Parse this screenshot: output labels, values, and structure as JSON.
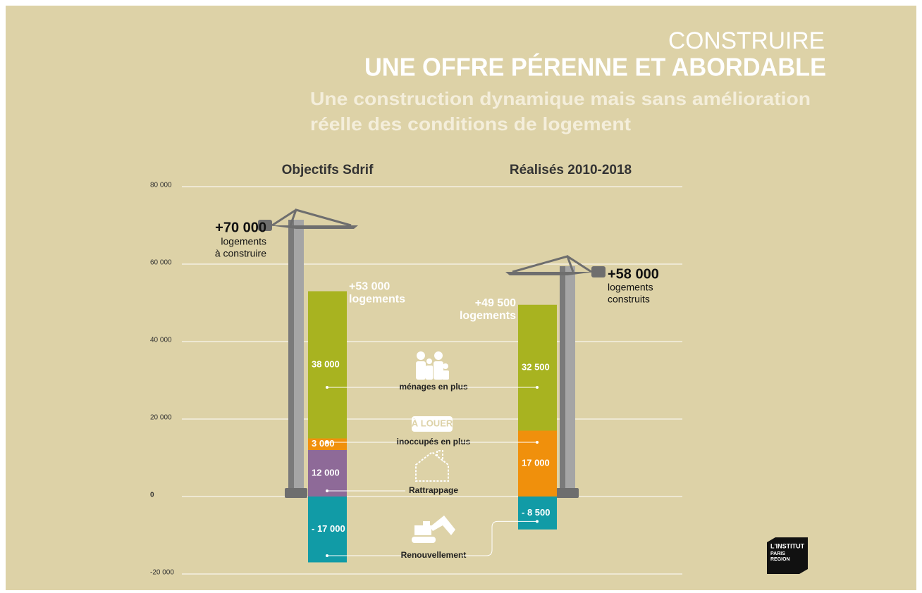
{
  "chart_data": {
    "type": "bar",
    "stacked": true,
    "header": "CONSTRUIRE",
    "title": "UNE OFFRE PÉRENNE ET ABORDABLE",
    "subtitle": [
      "Une construction dynamique mais sans amélioration",
      "réelle des conditions de logement"
    ],
    "categories": [
      "Objectifs Sdrif",
      "Réalisés 2010-2018"
    ],
    "ylim": [
      -20000,
      80000
    ],
    "yticks": [
      {
        "value": 80000,
        "label": "80 000"
      },
      {
        "value": 60000,
        "label": "60 000"
      },
      {
        "value": 40000,
        "label": "40 000"
      },
      {
        "value": 20000,
        "label": "20 000"
      },
      0,
      {
        "value": -20000,
        "label": "-20 000"
      }
    ],
    "grid": true,
    "series": [
      {
        "name": "Rattrappage",
        "color": "#8e6a98",
        "values": [
          12000,
          null
        ],
        "value_labels": [
          "12 000",
          null
        ]
      },
      {
        "name": "inoccupés en plus",
        "color": "#f0900c",
        "values": [
          3000,
          17000
        ],
        "value_labels": [
          "3 000",
          "17 000"
        ]
      },
      {
        "name": "ménages en plus",
        "color": "#a8b320",
        "values": [
          38000,
          32500
        ],
        "value_labels": [
          "38 000",
          "32 500"
        ]
      },
      {
        "name": "Renouvellement",
        "color": "#119ba6",
        "values": [
          -17000,
          -8500
        ],
        "value_labels": [
          "- 17 000",
          "- 8 500"
        ]
      }
    ],
    "sign_label": "À LOUER",
    "totals": {
      "values": [
        53000,
        49500
      ],
      "value_labels": [
        "+53 000",
        "+49 500"
      ],
      "unit": [
        "logements",
        "logements"
      ]
    },
    "cranes": {
      "values": [
        70000,
        58000
      ],
      "value_labels": [
        "+70 000",
        "+58 000"
      ],
      "notes": [
        [
          "logements",
          "à construire"
        ],
        [
          "logements",
          "construits"
        ]
      ]
    },
    "logo": [
      "L'INSTITUT",
      "PARIS",
      "REGION"
    ]
  }
}
